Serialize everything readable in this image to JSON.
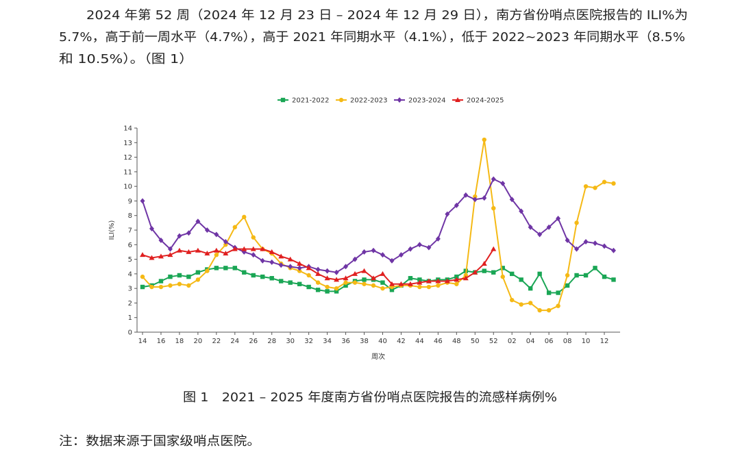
{
  "paragraph": [
    "2024 年第 52 周（2024 年 12 月 23 日 – 2024 年 12 月 29 日），南方省份哨点医院报告的 ILI%为",
    "5.7%，高于前一周水平（4.7%），高于 2021 年同期水平（4.1%），低于 2022~2023 年同期水平（8.5%",
    "和 10.5%）。（图 1）"
  ],
  "chart_data": {
    "type": "line",
    "x_label": "周次",
    "y_label": "ILI(%)",
    "categories": [
      "14",
      null,
      "16",
      null,
      "18",
      null,
      "20",
      null,
      "22",
      null,
      "24",
      null,
      "26",
      null,
      "28",
      null,
      "30",
      null,
      "32",
      null,
      "34",
      null,
      "36",
      null,
      "38",
      null,
      "40",
      null,
      "42",
      null,
      "44",
      null,
      "46",
      null,
      "48",
      null,
      "50",
      null,
      "52",
      null,
      "02",
      null,
      "04",
      null,
      "06",
      null,
      "08",
      null,
      "10",
      null,
      "12",
      null
    ],
    "ylim": [
      0,
      14
    ],
    "yticks": [
      0,
      1,
      2,
      3,
      4,
      5,
      6,
      7,
      8,
      9,
      10,
      11,
      12,
      13,
      14
    ],
    "grid": false,
    "legend": "top",
    "series": [
      {
        "name": "2021-2022",
        "color": "#1aa655",
        "marker": "square",
        "values": [
          3.1,
          3.2,
          3.5,
          3.8,
          3.9,
          3.8,
          4.1,
          4.3,
          4.4,
          4.4,
          4.4,
          4.1,
          3.9,
          3.8,
          3.7,
          3.5,
          3.4,
          3.3,
          3.1,
          2.9,
          2.8,
          2.8,
          3.2,
          3.5,
          3.6,
          3.6,
          3.4,
          2.9,
          3.2,
          3.7,
          3.6,
          3.5,
          3.6,
          3.6,
          3.8,
          4.2,
          4.1,
          4.2,
          4.1,
          4.4,
          4.0,
          3.6,
          3.0,
          4.0,
          2.7,
          2.7,
          3.2,
          3.9,
          3.9,
          4.4,
          3.8,
          3.6
        ]
      },
      {
        "name": "2022-2023",
        "color": "#f5b915",
        "marker": "circle",
        "values": [
          3.8,
          3.1,
          3.1,
          3.2,
          3.3,
          3.2,
          3.6,
          4.2,
          5.3,
          6.0,
          7.2,
          7.9,
          6.5,
          5.7,
          5.4,
          4.7,
          4.4,
          4.2,
          3.9,
          3.4,
          3.1,
          3.0,
          3.4,
          3.4,
          3.3,
          3.2,
          3.0,
          3.1,
          3.2,
          3.2,
          3.1,
          3.1,
          3.2,
          3.4,
          3.3,
          3.9,
          9.3,
          13.2,
          8.5,
          3.8,
          2.2,
          1.9,
          2.0,
          1.5,
          1.5,
          1.8,
          3.9,
          7.5,
          10.0,
          9.9,
          10.3,
          10.2
        ]
      },
      {
        "name": "2023-2024",
        "color": "#6f35a5",
        "marker": "diamond",
        "values": [
          9.0,
          7.1,
          6.3,
          5.7,
          6.6,
          6.8,
          7.6,
          7.0,
          6.7,
          6.2,
          5.8,
          5.5,
          5.3,
          4.9,
          4.8,
          4.6,
          4.5,
          4.4,
          4.5,
          4.3,
          4.2,
          4.1,
          4.5,
          5.0,
          5.5,
          5.6,
          5.3,
          4.9,
          5.3,
          5.7,
          6.0,
          5.8,
          6.4,
          8.1,
          8.7,
          9.4,
          9.1,
          9.2,
          10.5,
          10.2,
          9.1,
          8.3,
          7.2,
          6.7,
          7.2,
          7.8,
          6.3,
          5.7,
          6.2,
          6.1,
          5.9,
          5.6
        ]
      },
      {
        "name": "2024-2025",
        "color": "#e02020",
        "marker": "triangle",
        "values": [
          5.3,
          5.1,
          5.2,
          5.3,
          5.6,
          5.5,
          5.6,
          5.4,
          5.6,
          5.4,
          5.7,
          5.7,
          5.7,
          5.7,
          5.5,
          5.2,
          5.0,
          4.7,
          4.4,
          4.0,
          3.7,
          3.6,
          3.7,
          4.0,
          4.2,
          3.7,
          4.0,
          3.3,
          3.3,
          3.3,
          3.4,
          3.5,
          3.5,
          3.5,
          3.6,
          3.7,
          4.1,
          4.7,
          5.7,
          null,
          null,
          null,
          null,
          null,
          null,
          null,
          null,
          null,
          null,
          null,
          null,
          null
        ]
      }
    ]
  },
  "caption": "图 1　2021 – 2025 年度南方省份哨点医院报告的流感样病例%",
  "note": "注：数据来源于国家级哨点医院。"
}
